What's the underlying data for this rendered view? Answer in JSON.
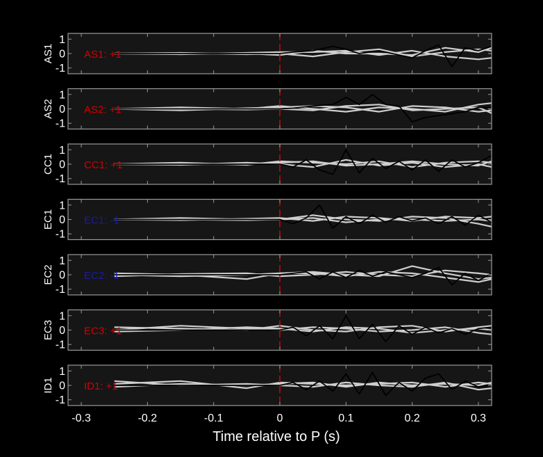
{
  "chart_data": {
    "type": "line",
    "xlabel": "Time relative to P (s)",
    "xlim": [
      -0.32,
      0.32
    ],
    "xticks": [
      -0.3,
      -0.2,
      -0.1,
      0,
      0.1,
      0.2,
      0.3
    ],
    "xtick_labels": [
      "-0.3",
      "-0.2",
      "-0.1",
      "0",
      "0.1",
      "0.2",
      "0.3"
    ],
    "ylim": [
      -1.4,
      1.4
    ],
    "yticks": [
      1,
      0,
      -1
    ],
    "ytick_labels": [
      "1",
      "0",
      "-1"
    ],
    "marker_time": 0,
    "colors": {
      "background": "#000000",
      "axes_face": "#161616",
      "axes_border": "#9a9a9a",
      "gray_traces": "#cfcfcf",
      "black_trace": "#000000",
      "marker": "#d40000",
      "positive": "#d40000",
      "negative": "#1a1aa8"
    },
    "panels": [
      {
        "station": "AS1",
        "polarity_label": "AS1: +1",
        "polarity": 1,
        "black_trace": {
          "x": [
            -0.25,
            -0.2,
            -0.15,
            -0.1,
            -0.05,
            0,
            0.02,
            0.05,
            0.08,
            0.1,
            0.12,
            0.15,
            0.18,
            0.2,
            0.22,
            0.24,
            0.26,
            0.28,
            0.3,
            0.32
          ],
          "y": [
            0,
            0,
            0,
            0,
            0,
            0,
            0.1,
            0.2,
            0.5,
            0.3,
            0,
            0.2,
            -0.1,
            -0.3,
            0.2,
            0.6,
            -0.9,
            0.4,
            0.2,
            0.5
          ]
        },
        "gray_traces": [
          {
            "x": [
              -0.25,
              -0.15,
              -0.05,
              0,
              0.05,
              0.1,
              0.15,
              0.2,
              0.25,
              0.3,
              0.32
            ],
            "y": [
              0,
              0.05,
              -0.05,
              0,
              -0.2,
              0.1,
              0.3,
              -0.2,
              0.1,
              0.3,
              0.2
            ]
          },
          {
            "x": [
              -0.25,
              -0.15,
              -0.05,
              0,
              0.05,
              0.1,
              0.15,
              0.2,
              0.25,
              0.3,
              0.32
            ],
            "y": [
              0,
              -0.05,
              0.05,
              0.1,
              0.1,
              0.2,
              -0.1,
              0.2,
              -0.2,
              -0.4,
              -0.3
            ]
          },
          {
            "x": [
              -0.25,
              -0.15,
              -0.05,
              0,
              0.05,
              0.1,
              0.15,
              0.2,
              0.25,
              0.3,
              0.32
            ],
            "y": [
              0,
              0,
              0,
              -0.1,
              0.2,
              0,
              0,
              -0.1,
              0.4,
              0.1,
              0.4
            ]
          }
        ]
      },
      {
        "station": "AS2",
        "polarity_label": "AS2: +1",
        "polarity": 1,
        "black_trace": {
          "x": [
            -0.25,
            -0.2,
            -0.15,
            -0.1,
            -0.05,
            0,
            0.02,
            0.05,
            0.08,
            0.1,
            0.12,
            0.14,
            0.16,
            0.18,
            0.2,
            0.22,
            0.25,
            0.28,
            0.3,
            0.32
          ],
          "y": [
            0,
            0,
            0,
            0,
            0,
            0,
            0.05,
            0.2,
            0.3,
            0.8,
            0.3,
            1.0,
            0.3,
            0.2,
            -0.9,
            -0.6,
            -0.4,
            -0.2,
            0.1,
            0.1
          ]
        },
        "gray_traces": [
          {
            "x": [
              -0.25,
              -0.15,
              -0.05,
              0,
              0.05,
              0.1,
              0.15,
              0.2,
              0.25,
              0.3,
              0.32
            ],
            "y": [
              0,
              0.1,
              0,
              0.2,
              0,
              -0.2,
              0.1,
              0,
              -0.2,
              0.3,
              0.4
            ]
          },
          {
            "x": [
              -0.25,
              -0.15,
              -0.05,
              0,
              0.05,
              0.1,
              0.15,
              0.2,
              0.25,
              0.3,
              0.32
            ],
            "y": [
              0,
              -0.1,
              0.05,
              0.1,
              0.2,
              0.1,
              -0.2,
              0.2,
              0.1,
              -0.2,
              -0.1
            ]
          },
          {
            "x": [
              -0.25,
              -0.15,
              -0.05,
              0,
              0.05,
              0.1,
              0.15,
              0.2,
              0.25,
              0.3,
              0.32
            ],
            "y": [
              0,
              0,
              -0.05,
              0,
              -0.1,
              0.2,
              0.3,
              -0.1,
              0,
              0.1,
              -0.3
            ]
          }
        ]
      },
      {
        "station": "CC1",
        "polarity_label": "CC1: +1",
        "polarity": 1,
        "black_trace": {
          "x": [
            -0.25,
            -0.2,
            -0.15,
            -0.1,
            -0.05,
            0,
            0.02,
            0.04,
            0.06,
            0.08,
            0.1,
            0.12,
            0.14,
            0.16,
            0.18,
            0.2,
            0.22,
            0.24,
            0.26,
            0.28,
            0.3,
            0.32
          ],
          "y": [
            0,
            0,
            0,
            0,
            0,
            0,
            -0.2,
            0.3,
            -0.4,
            -0.7,
            1.0,
            -0.6,
            0.4,
            -0.3,
            0.2,
            -0.4,
            0.3,
            -0.5,
            0.3,
            -0.2,
            0.1,
            0.6
          ]
        },
        "gray_traces": [
          {
            "x": [
              -0.25,
              -0.15,
              -0.05,
              0,
              0.05,
              0.1,
              0.15,
              0.2,
              0.25,
              0.3,
              0.32
            ],
            "y": [
              0,
              0.1,
              -0.05,
              0.2,
              0.1,
              0,
              0.2,
              -0.2,
              0.1,
              0.2,
              0.1
            ]
          },
          {
            "x": [
              -0.25,
              -0.15,
              -0.05,
              0,
              0.05,
              0.1,
              0.15,
              0.2,
              0.25,
              0.3,
              0.32
            ],
            "y": [
              0,
              -0.05,
              0.1,
              0,
              -0.2,
              0.3,
              -0.1,
              0.1,
              -0.2,
              0,
              -0.2
            ]
          },
          {
            "x": [
              -0.25,
              -0.15,
              -0.05,
              0,
              0.05,
              0.1,
              0.15,
              0.2,
              0.25,
              0.3,
              0.32
            ],
            "y": [
              0,
              0,
              0,
              0.1,
              0.2,
              -0.1,
              0,
              0.2,
              0,
              -0.1,
              0.2
            ]
          }
        ]
      },
      {
        "station": "EC1",
        "polarity_label": "EC1: -1",
        "polarity": -1,
        "black_trace": {
          "x": [
            -0.25,
            -0.2,
            -0.15,
            -0.1,
            -0.05,
            0,
            0.02,
            0.04,
            0.06,
            0.08,
            0.1,
            0.12,
            0.14,
            0.16,
            0.18,
            0.2,
            0.22,
            0.24,
            0.26,
            0.28,
            0.3,
            0.32
          ],
          "y": [
            0,
            0,
            0,
            0,
            0,
            0,
            -0.3,
            0.1,
            1.0,
            -0.6,
            0.2,
            -0.3,
            0.3,
            -0.2,
            0.2,
            -0.1,
            0.1,
            -0.3,
            0.2,
            -0.4,
            0.3,
            -0.2
          ]
        },
        "gray_traces": [
          {
            "x": [
              -0.25,
              -0.15,
              -0.05,
              0,
              0.05,
              0.1,
              0.15,
              0.2,
              0.25,
              0.3,
              0.32
            ],
            "y": [
              0,
              0.1,
              0,
              0,
              0.3,
              0,
              -0.1,
              0.2,
              0.1,
              -0.3,
              -0.5
            ]
          },
          {
            "x": [
              -0.25,
              -0.15,
              -0.05,
              0,
              0.05,
              0.1,
              0.15,
              0.2,
              0.25,
              0.3,
              0.32
            ],
            "y": [
              0,
              -0.05,
              0.05,
              0.1,
              -0.1,
              0.2,
              0.1,
              -0.1,
              0.2,
              0.1,
              0.2
            ]
          },
          {
            "x": [
              -0.25,
              -0.15,
              -0.05,
              0,
              0.05,
              0.1,
              0.15,
              0.2,
              0.25,
              0.3,
              0.32
            ],
            "y": [
              0,
              0,
              -0.05,
              0,
              0.1,
              -0.2,
              0,
              0,
              -0.1,
              0,
              -0.1
            ]
          }
        ]
      },
      {
        "station": "EC2",
        "polarity_label": "EC2: -1",
        "polarity": -1,
        "black_trace": {
          "x": [
            -0.25,
            -0.2,
            -0.15,
            -0.1,
            -0.05,
            0,
            0.02,
            0.04,
            0.06,
            0.08,
            0.1,
            0.12,
            0.14,
            0.16,
            0.18,
            0.2,
            0.22,
            0.24,
            0.26,
            0.28,
            0.3,
            0.32
          ],
          "y": [
            0,
            0,
            0,
            0,
            0,
            0,
            0.1,
            0.2,
            -0.3,
            0.2,
            -0.2,
            0.3,
            -0.1,
            0.2,
            0,
            -0.2,
            0.1,
            0.5,
            -0.7,
            0.1,
            -0.4,
            0.1
          ]
        },
        "gray_traces": [
          {
            "x": [
              -0.25,
              -0.15,
              -0.05,
              0,
              0.05,
              0.1,
              0.15,
              0.2,
              0.25,
              0.3,
              0.32
            ],
            "y": [
              0.1,
              0,
              -0.3,
              0.1,
              0.2,
              0,
              -0.1,
              0.6,
              0.1,
              -0.3,
              -0.2
            ]
          },
          {
            "x": [
              -0.25,
              -0.15,
              -0.05,
              0,
              0.05,
              0.1,
              0.15,
              0.2,
              0.25,
              0.3,
              0.32
            ],
            "y": [
              -0.1,
              0.05,
              0.1,
              -0.1,
              0,
              0.2,
              0,
              -0.1,
              0.3,
              0.1,
              0
            ]
          },
          {
            "x": [
              -0.25,
              -0.15,
              -0.05,
              0,
              0.05,
              0.1,
              0.15,
              0.2,
              0.25,
              0.3,
              0.32
            ],
            "y": [
              0,
              -0.1,
              0,
              0.1,
              0.1,
              -0.1,
              0.2,
              0.1,
              -0.2,
              -0.5,
              -0.3
            ]
          }
        ]
      },
      {
        "station": "EC3",
        "polarity_label": "EC3: +1",
        "polarity": 1,
        "black_trace": {
          "x": [
            -0.25,
            -0.2,
            -0.15,
            -0.1,
            -0.05,
            0,
            0.02,
            0.04,
            0.06,
            0.08,
            0.1,
            0.12,
            0.14,
            0.16,
            0.18,
            0.2,
            0.22,
            0.24,
            0.26,
            0.28,
            0.3,
            0.32
          ],
          "y": [
            0,
            0,
            0,
            0,
            0,
            0,
            0.2,
            -0.4,
            0.3,
            -0.6,
            1.0,
            -0.6,
            0.4,
            -0.8,
            0.3,
            -0.3,
            0.2,
            -0.2,
            0.1,
            -0.3,
            0.1,
            0.2
          ]
        },
        "gray_traces": [
          {
            "x": [
              -0.25,
              -0.15,
              -0.05,
              0,
              0.05,
              0.1,
              0.15,
              0.2,
              0.25,
              0.3,
              0.32
            ],
            "y": [
              0.2,
              0.1,
              0,
              0.3,
              0,
              -0.1,
              0.2,
              0.3,
              -0.1,
              0.2,
              0.3
            ]
          },
          {
            "x": [
              -0.25,
              -0.15,
              -0.05,
              0,
              0.05,
              0.1,
              0.15,
              0.2,
              0.25,
              0.3,
              0.32
            ],
            "y": [
              0,
              0.3,
              0.1,
              0,
              0.2,
              0.1,
              -0.1,
              0,
              0.2,
              -0.2,
              -0.3
            ]
          },
          {
            "x": [
              -0.25,
              -0.15,
              -0.05,
              0,
              0.05,
              0.1,
              0.15,
              0.2,
              0.25,
              0.3,
              0.32
            ],
            "y": [
              -0.1,
              0,
              0.2,
              0.1,
              -0.1,
              0.2,
              0.1,
              -0.2,
              0,
              0.1,
              0
            ]
          }
        ]
      },
      {
        "station": "ID1",
        "polarity_label": "ID1: +1",
        "polarity": 1,
        "black_trace": {
          "x": [
            -0.25,
            -0.2,
            -0.15,
            -0.1,
            -0.05,
            0,
            0.02,
            0.04,
            0.06,
            0.08,
            0.1,
            0.12,
            0.14,
            0.16,
            0.18,
            0.2,
            0.22,
            0.24,
            0.26,
            0.28,
            0.3,
            0.32
          ],
          "y": [
            0,
            0,
            0,
            0,
            0,
            0,
            0.2,
            -0.3,
            0.3,
            -0.4,
            0.8,
            -0.6,
            0.9,
            -0.7,
            0.2,
            -0.4,
            0.5,
            0.8,
            -0.3,
            0.3,
            -0.1,
            0
          ]
        },
        "gray_traces": [
          {
            "x": [
              -0.25,
              -0.15,
              -0.05,
              0,
              0.05,
              0.1,
              0.15,
              0.2,
              0.25,
              0.3,
              0.32
            ],
            "y": [
              0.1,
              0.3,
              -0.2,
              0.2,
              0.1,
              0,
              0.1,
              0.2,
              -0.1,
              0.2,
              0.1
            ]
          },
          {
            "x": [
              -0.25,
              -0.15,
              -0.05,
              0,
              0.05,
              0.1,
              0.15,
              0.2,
              0.25,
              0.3,
              0.32
            ],
            "y": [
              0.3,
              0,
              0.1,
              0,
              -0.1,
              0.2,
              0,
              -0.1,
              0.2,
              -0.3,
              -0.2
            ]
          },
          {
            "x": [
              -0.25,
              -0.15,
              -0.05,
              0,
              0.05,
              0.1,
              0.15,
              0.2,
              0.25,
              0.3,
              0.32
            ],
            "y": [
              -0.1,
              0.1,
              0,
              0.1,
              0.2,
              -0.1,
              0.2,
              0,
              0.1,
              0,
              0.2
            ]
          }
        ]
      }
    ]
  }
}
